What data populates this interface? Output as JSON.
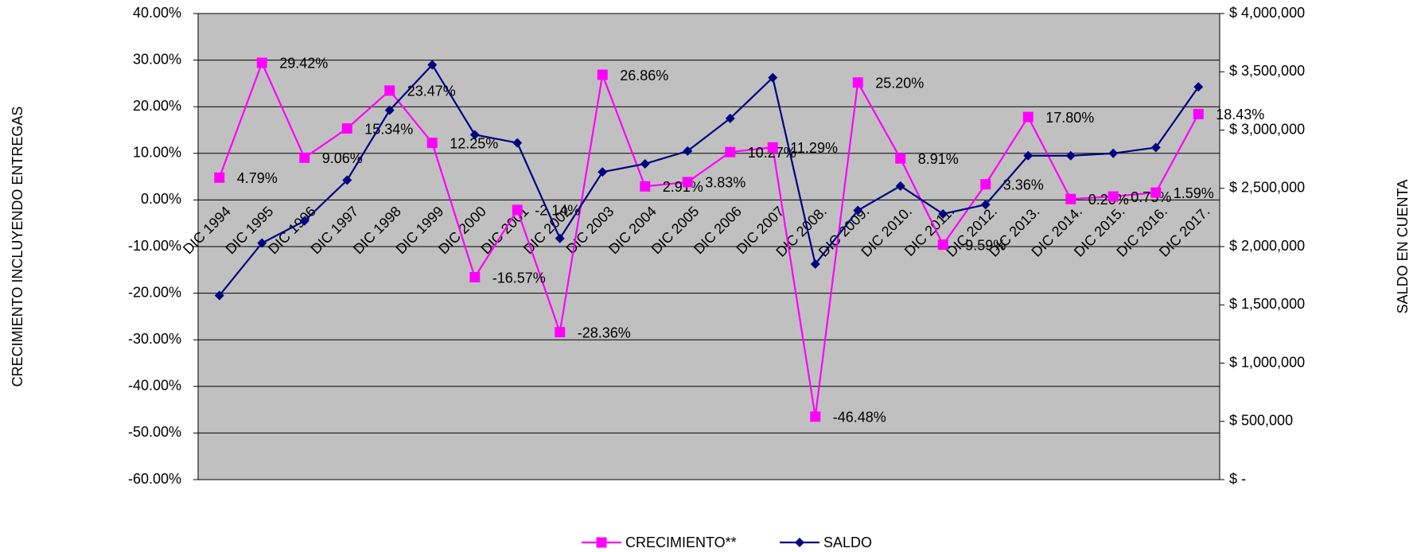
{
  "chart_data": {
    "type": "line",
    "categories": [
      "DIC 1994",
      "DIC 1995",
      "DIC 1996",
      "DIC 1997",
      "DIC 1998",
      "DIC 1999",
      "DIC 2000",
      "DIC 2001",
      "DIC 2002",
      "DIC 2003",
      "DIC 2004",
      "DIC 2005",
      "DIC 2006",
      "DIC 2007",
      "DIC 2008.",
      "DIC 2009.",
      "DIC 2010.",
      "DIC 2011.",
      "DIC 2012.",
      "DIC 2013.",
      "DIC 2014.",
      "DIC 2015.",
      "DIC 2016.",
      "DIC 2017."
    ],
    "series": [
      {
        "name": "CRECIMIENTO**",
        "color": "#ff00ff",
        "marker": "square",
        "values": [
          4.79,
          29.42,
          9.06,
          15.34,
          23.47,
          12.25,
          -16.57,
          -2.14,
          -28.36,
          26.86,
          2.91,
          3.83,
          10.27,
          11.29,
          -46.48,
          25.2,
          8.91,
          -9.59,
          3.36,
          17.8,
          0.2,
          0.75,
          1.59,
          18.43
        ],
        "value_labels": [
          "4.79%",
          "29.42%",
          "9.06%",
          "15.34%",
          "23.47%",
          "12.25%",
          "-16.57%",
          "-2.14%",
          "-28.36%",
          "26.86%",
          "2.91%",
          "3.83%",
          "10.27%",
          "11.29%",
          "-46.48%",
          "25.20%",
          "8.91%",
          "-9.59%",
          "3.36%",
          "17.80%",
          "0.20%",
          "0.75%",
          "1.59%",
          "18.43%"
        ]
      },
      {
        "name": "SALDO",
        "color": "#000080",
        "marker": "diamond",
        "axis": "y2",
        "values": [
          1580000,
          2030000,
          2220000,
          2570000,
          3170000,
          3560000,
          2960000,
          2890000,
          2070000,
          2640000,
          2710000,
          2820000,
          3100000,
          3450000,
          1850000,
          2310000,
          2520000,
          2280000,
          2360000,
          2780000,
          2780000,
          2800000,
          2850000,
          3370000
        ]
      }
    ],
    "y_label": "CRECIMIENTO INCLUYENDO ENTREGAS",
    "y2_label": "SALDO EN CUENTA",
    "ylim": [
      -60,
      40
    ],
    "yticks": [
      {
        "value": -60,
        "label": "-60.00%"
      },
      {
        "value": -50,
        "label": "-50.00%"
      },
      {
        "value": -40,
        "label": "-40.00%"
      },
      {
        "value": -30,
        "label": "-30.00%"
      },
      {
        "value": -20,
        "label": "-20.00%"
      },
      {
        "value": -10,
        "label": "-10.00%"
      },
      {
        "value": 0,
        "label": "0.00%"
      },
      {
        "value": 10,
        "label": "10.00%"
      },
      {
        "value": 20,
        "label": "20.00%"
      },
      {
        "value": 30,
        "label": "30.00%"
      },
      {
        "value": 40,
        "label": "40.00%"
      }
    ],
    "y2lim": [
      0,
      4000000
    ],
    "y2ticks": [
      {
        "value": 0,
        "label": "$ -"
      },
      {
        "value": 500000,
        "label": "$ 500,000"
      },
      {
        "value": 1000000,
        "label": "$ 1,000,000"
      },
      {
        "value": 1500000,
        "label": "$ 1,500,000"
      },
      {
        "value": 2000000,
        "label": "$ 2,000,000"
      },
      {
        "value": 2500000,
        "label": "$ 2,500,000"
      },
      {
        "value": 3000000,
        "label": "$ 3,000,000"
      },
      {
        "value": 3500000,
        "label": "$ 3,500,000"
      },
      {
        "value": 4000000,
        "label": "$ 4,000,000"
      }
    ],
    "grid": true,
    "legend": "bottom",
    "background": "#c0c0c0"
  }
}
